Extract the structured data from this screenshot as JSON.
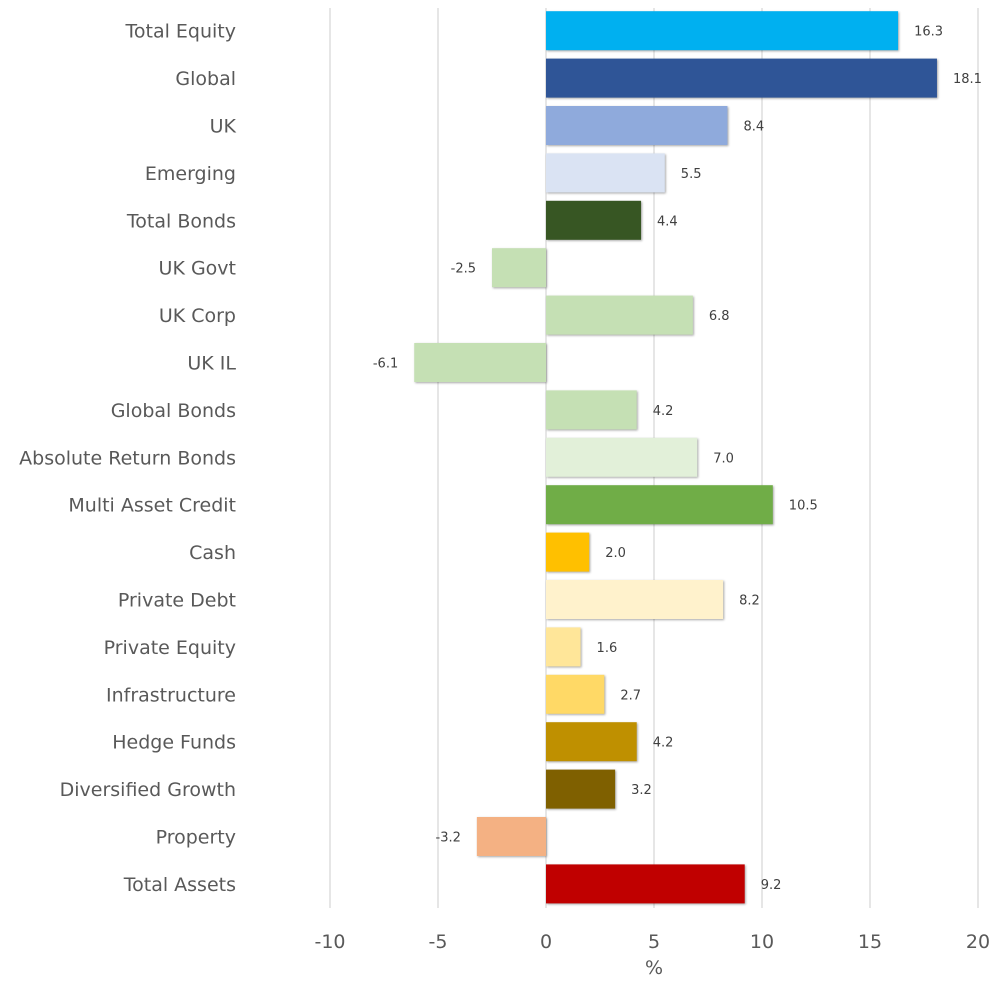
{
  "chart_data": {
    "type": "bar",
    "orientation": "horizontal",
    "xlabel": "%",
    "ylabel": "",
    "xlim": [
      -10,
      20
    ],
    "x_ticks": [
      -10,
      -5,
      0,
      5,
      10,
      15,
      20
    ],
    "x_tick_labels": [
      "-10",
      "-5",
      "0",
      "5",
      "10",
      "15",
      "20"
    ],
    "grid": true,
    "legend": "none",
    "categories": [
      "Total Equity",
      "Global",
      "UK",
      "Emerging",
      "Total Bonds",
      "UK Govt",
      "UK Corp",
      "UK IL",
      "Global Bonds",
      "Absolute Return Bonds",
      "Multi Asset Credit",
      "Cash",
      "Private Debt",
      "Private Equity",
      "Infrastructure",
      "Hedge Funds",
      "Diversified Growth",
      "Property",
      "Total Assets"
    ],
    "values": [
      16.3,
      18.1,
      8.4,
      5.5,
      4.4,
      -2.5,
      6.8,
      -6.1,
      4.2,
      7.0,
      10.5,
      2.0,
      8.2,
      1.6,
      2.7,
      4.2,
      3.2,
      -3.2,
      9.2
    ],
    "value_labels": [
      "16.3",
      "18.1",
      "8.4",
      "5.5",
      "4.4",
      "-2.5",
      "6.8",
      "-6.1",
      "4.2",
      "7.0",
      "10.5",
      "2.0",
      "8.2",
      "1.6",
      "2.7",
      "4.2",
      "3.2",
      "-3.2",
      "9.2"
    ],
    "bar_colors": [
      "#00b0f0",
      "#2f5597",
      "#8faadc",
      "#dae3f3",
      "#375623",
      "#c5e0b4",
      "#c5e0b4",
      "#c5e0b4",
      "#c5e0b4",
      "#e2f0d9",
      "#70ad47",
      "#ffc000",
      "#fff2cc",
      "#ffe699",
      "#ffd966",
      "#bf9000",
      "#7f6000",
      "#f4b183",
      "#c00000"
    ]
  }
}
